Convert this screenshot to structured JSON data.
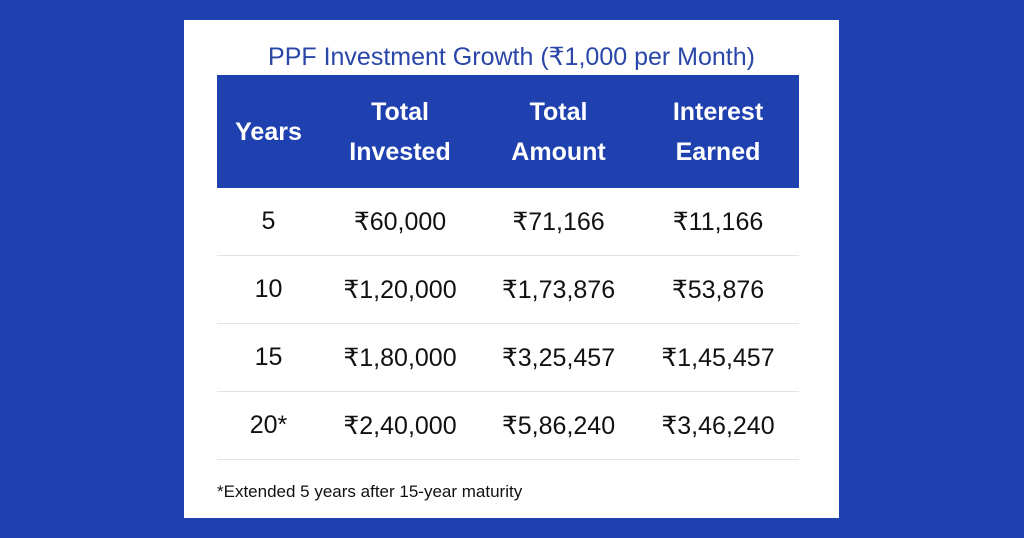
{
  "title": "PPF Investment Growth (₹1,000 per Month)",
  "table": {
    "headers": [
      [
        "Years"
      ],
      [
        "Total",
        "Invested"
      ],
      [
        "Total",
        "Amount"
      ],
      [
        "Interest",
        "Earned"
      ]
    ],
    "rows": [
      [
        "5",
        "₹60,000",
        "₹71,166",
        "₹11,166"
      ],
      [
        "10",
        "₹1,20,000",
        "₹1,73,876",
        "₹53,876"
      ],
      [
        "15",
        "₹1,80,000",
        "₹3,25,457",
        "₹1,45,457"
      ],
      [
        "20*",
        "₹2,40,000",
        "₹5,86,240",
        "₹3,46,240"
      ]
    ]
  },
  "footnote": "*Extended 5 years after 15-year maturity",
  "colors": {
    "background": "#1f41b0",
    "header_bg": "#1f41b0",
    "title_text": "#2946a8"
  }
}
